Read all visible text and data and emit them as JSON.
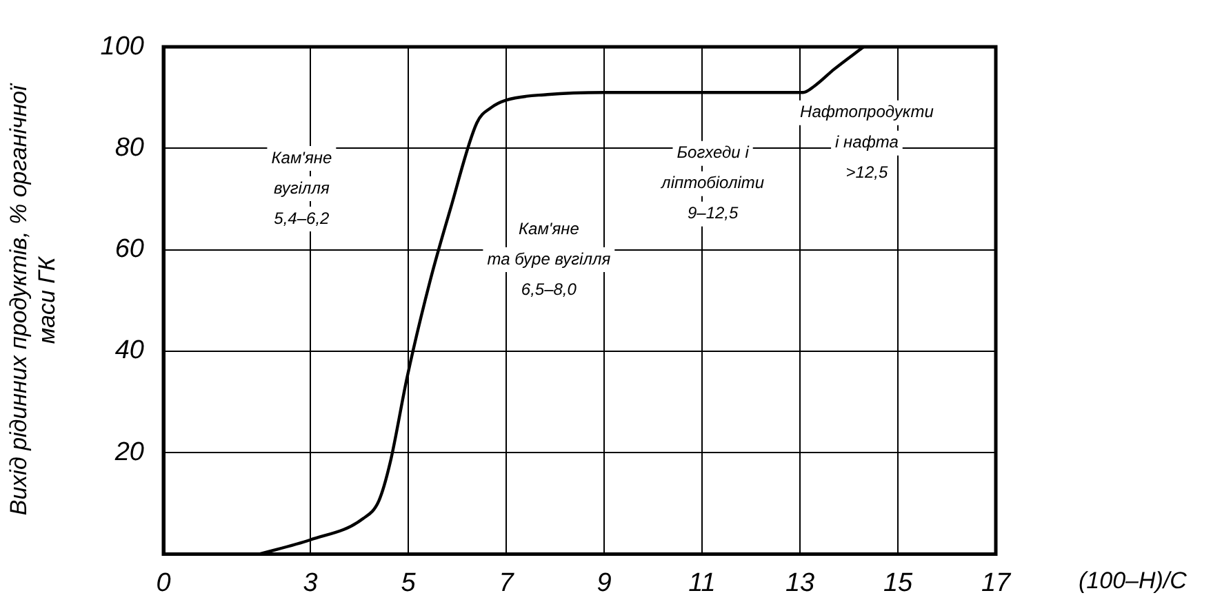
{
  "chart_data": {
    "type": "line",
    "xlabel": "(100–Н)/С",
    "ylabel": "Вихід рідинних продуктів, % органічної\nмаси ГК",
    "x": [
      1.96,
      3.0,
      4.08,
      4.4,
      4.63,
      4.98,
      5.45,
      5.86,
      6.4,
      6.69,
      7.0,
      7.84,
      9.0,
      13.06,
      13.3,
      13.7,
      14.3
    ],
    "series": [
      {
        "color": "#000000",
        "values": [
          0,
          2.8,
          7,
          10.5,
          18,
          35,
          54,
          68,
          85,
          88,
          89.5,
          90.6,
          91,
          91,
          92.3,
          95.6,
          100
        ]
      }
    ],
    "xlim": [
      0,
      17
    ],
    "xticks": [
      0,
      3,
      5,
      7,
      9,
      11,
      13,
      15,
      17
    ],
    "ylim": [
      0,
      100
    ],
    "yticks": [
      20,
      40,
      60,
      80,
      100
    ],
    "grid": true,
    "legend": false,
    "marker": "none",
    "line_style": "solid",
    "annotations": [
      "Кам'яне\nвугілля\n5,4–6,2",
      "Кам'яне\nта буре вугілля\n6,5–8,0",
      "Богхеди і\nліптобіоліти\n9–12,5",
      "Нафтопродукти\nі нафта\n>12,5"
    ]
  }
}
